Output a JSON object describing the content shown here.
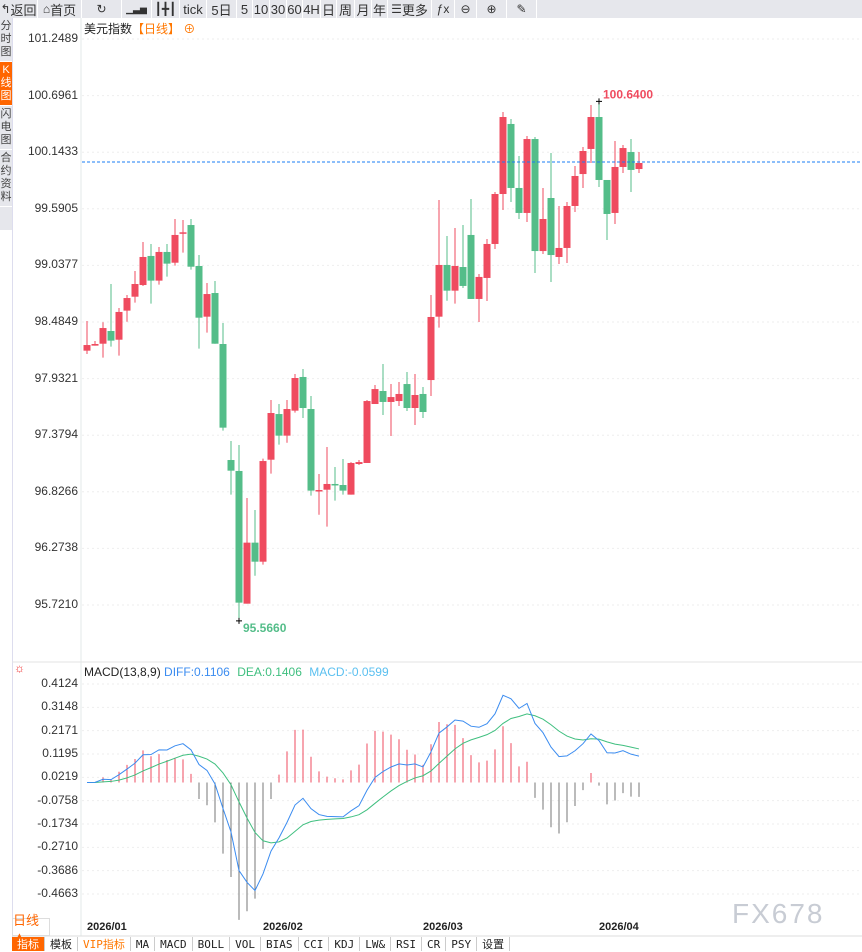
{
  "toolbar": {
    "items": [
      {
        "id": "back",
        "label": "返回",
        "icon": "back-arrow-icon"
      },
      {
        "id": "home",
        "label": "首页",
        "icon": "home-icon"
      },
      {
        "id": "refresh",
        "label": "",
        "icon": "refresh-icon"
      },
      {
        "id": "indicator",
        "label": "",
        "icon": "bar-chart-icon"
      },
      {
        "id": "candle",
        "label": "",
        "icon": "candlestick-icon"
      },
      {
        "id": "tick",
        "label": "tick"
      },
      {
        "id": "5day",
        "label": "5日"
      },
      {
        "id": "5",
        "label": "5"
      },
      {
        "id": "10",
        "label": "10"
      },
      {
        "id": "30",
        "label": "30"
      },
      {
        "id": "60",
        "label": "60"
      },
      {
        "id": "4h",
        "label": "4H"
      },
      {
        "id": "day",
        "label": "日"
      },
      {
        "id": "week",
        "label": "周"
      },
      {
        "id": "month",
        "label": "月"
      },
      {
        "id": "year",
        "label": "年"
      },
      {
        "id": "more",
        "label": "更多",
        "icon": "menu-icon"
      },
      {
        "id": "fx",
        "label": "",
        "icon": "function-icon"
      },
      {
        "id": "zoomout",
        "label": "",
        "icon": "zoom-out-icon"
      },
      {
        "id": "zoomin",
        "label": "",
        "icon": "zoom-in-icon"
      },
      {
        "id": "draw",
        "label": "",
        "icon": "pen-icon"
      }
    ]
  },
  "sidebar": {
    "items": [
      {
        "label": "分时图",
        "active": false
      },
      {
        "label": "K线图",
        "active": true
      },
      {
        "label": "闪电图",
        "active": false
      },
      {
        "label": "合约资料",
        "active": false
      }
    ]
  },
  "chart": {
    "title": "美元指数",
    "period_tag": "【日线】",
    "high_label": "100.6400",
    "low_label": "95.5660",
    "current_price": 100.047
  },
  "colors": {
    "up": "#ef4b5f",
    "down": "#54bd89",
    "accent": "#ff6600",
    "diff": "#3b8cf0",
    "dea": "#3fbf7f",
    "macd": "#5bc0f0",
    "current_line": "#1a7cf5"
  },
  "chart_data": {
    "type": "candlestick",
    "price_axis_ticks": [
      "101.2489",
      "100.6961",
      "100.1433",
      "99.5905",
      "99.0377",
      "98.4849",
      "97.9321",
      "97.3794",
      "96.8266",
      "96.2738",
      "95.7210"
    ],
    "price_range": [
      95.721,
      101.2489
    ],
    "x_labels": [
      {
        "label": "2026/01",
        "index": 1
      },
      {
        "label": "2026/02",
        "index": 23
      },
      {
        "label": "2026/03",
        "index": 43
      },
      {
        "label": "2026/04",
        "index": 65
      }
    ],
    "ohlc": [
      [
        98.205,
        98.495,
        98.172,
        98.26
      ],
      [
        98.254,
        98.299,
        98.254,
        98.27
      ],
      [
        98.273,
        98.482,
        98.137,
        98.426
      ],
      [
        98.397,
        98.856,
        98.244,
        98.303
      ],
      [
        98.312,
        98.622,
        98.156,
        98.583
      ],
      [
        98.596,
        98.749,
        98.488,
        98.719
      ],
      [
        98.732,
        98.983,
        98.674,
        98.856
      ],
      [
        98.846,
        99.266,
        98.837,
        99.12
      ],
      [
        99.13,
        99.247,
        98.664,
        98.889
      ],
      [
        98.889,
        99.217,
        98.85,
        99.169
      ],
      [
        99.169,
        99.247,
        98.928,
        99.055
      ],
      [
        99.064,
        99.491,
        99.035,
        99.335
      ],
      [
        99.348,
        99.481,
        99.162,
        99.361
      ],
      [
        99.432,
        99.491,
        98.996,
        99.025
      ],
      [
        99.032,
        99.139,
        98.225,
        98.527
      ],
      [
        98.537,
        98.866,
        98.381,
        98.758
      ],
      [
        98.768,
        98.885,
        98.273,
        98.273
      ],
      [
        98.27,
        98.475,
        97.424,
        97.453
      ],
      [
        97.137,
        97.323,
        96.799,
        97.033
      ],
      [
        97.03,
        97.284,
        95.566,
        95.744
      ],
      [
        95.734,
        96.766,
        95.734,
        96.33
      ],
      [
        96.33,
        96.649,
        96.007,
        96.144
      ],
      [
        96.144,
        97.15,
        96.115,
        97.127
      ],
      [
        97.14,
        97.723,
        97.004,
        97.596
      ],
      [
        97.586,
        97.684,
        97.287,
        97.375
      ],
      [
        97.375,
        97.723,
        97.306,
        97.635
      ],
      [
        97.619,
        97.977,
        97.6,
        97.938
      ],
      [
        97.948,
        98.026,
        97.547,
        97.645
      ],
      [
        97.635,
        97.762,
        96.789,
        96.838
      ],
      [
        96.838,
        97.0,
        96.603,
        96.844
      ],
      [
        96.847,
        97.264,
        96.486,
        96.903
      ],
      [
        96.903,
        97.069,
        96.74,
        96.896
      ],
      [
        96.893,
        97.147,
        96.799,
        96.838
      ],
      [
        96.799,
        97.117,
        96.799,
        97.108
      ],
      [
        97.098,
        97.137,
        97.088,
        97.117
      ],
      [
        97.108,
        97.723,
        97.108,
        97.713
      ],
      [
        97.684,
        97.87,
        97.684,
        97.83
      ],
      [
        97.811,
        98.075,
        97.577,
        97.704
      ],
      [
        97.704,
        97.879,
        97.372,
        97.752
      ],
      [
        97.713,
        97.899,
        97.665,
        97.782
      ],
      [
        97.879,
        97.997,
        97.616,
        97.645
      ],
      [
        97.645,
        97.977,
        97.479,
        97.772
      ],
      [
        97.782,
        97.85,
        97.547,
        97.606
      ],
      [
        97.918,
        98.749,
        97.762,
        98.534
      ],
      [
        98.537,
        99.676,
        98.43,
        99.042
      ],
      [
        99.042,
        99.325,
        98.693,
        98.791
      ],
      [
        98.791,
        99.403,
        98.664,
        99.032
      ],
      [
        99.022,
        99.432,
        98.817,
        98.837
      ],
      [
        99.335,
        99.686,
        98.71,
        98.71
      ],
      [
        98.71,
        98.954,
        98.485,
        98.925
      ],
      [
        98.915,
        99.296,
        98.69,
        99.247
      ],
      [
        99.247,
        99.755,
        99.198,
        99.735
      ],
      [
        99.735,
        100.536,
        99.579,
        100.487
      ],
      [
        100.419,
        100.468,
        99.657,
        99.794
      ],
      [
        99.794,
        100.106,
        99.491,
        99.55
      ],
      [
        99.55,
        100.302,
        99.462,
        100.272
      ],
      [
        100.272,
        100.292,
        98.964,
        99.178
      ],
      [
        99.178,
        99.794,
        99.149,
        99.491
      ],
      [
        99.696,
        100.136,
        98.876,
        99.139
      ],
      [
        99.12,
        99.618,
        99.051,
        99.208
      ],
      [
        99.208,
        99.657,
        99.061,
        99.618
      ],
      [
        99.618,
        100.009,
        99.559,
        99.911
      ],
      [
        99.93,
        100.194,
        99.794,
        100.155
      ],
      [
        100.175,
        100.604,
        100.038,
        100.487
      ],
      [
        100.487,
        100.64,
        99.804,
        99.872
      ],
      [
        99.872,
        99.872,
        99.286,
        99.54
      ],
      [
        99.55,
        100.253,
        99.442,
        99.999
      ],
      [
        99.999,
        100.214,
        99.94,
        100.184
      ],
      [
        100.145,
        100.272,
        99.755,
        99.97
      ],
      [
        99.979,
        100.145,
        99.94,
        100.038
      ]
    ],
    "macd": {
      "label": "MACD(13,8,9)",
      "diff_label": "DIFF:0.1106",
      "dea_label": "DEA:0.1406",
      "macd_label": "MACD:-0.0599",
      "params": [
        13,
        8,
        9
      ],
      "axis_ticks": [
        "0.4124",
        "0.3148",
        "0.2171",
        "0.1195",
        "0.0219",
        "-0.0758",
        "-0.1734",
        "-0.2710",
        "-0.3686",
        "-0.4663"
      ],
      "range": [
        -0.4663,
        0.4124
      ]
    }
  },
  "bottom": {
    "period_button": "日线 ▲",
    "tabs": [
      {
        "label": "指标",
        "active": true
      },
      {
        "label": "模板"
      },
      {
        "label": "VIP指标",
        "vip": true
      },
      {
        "label": "MA"
      },
      {
        "label": "MACD"
      },
      {
        "label": "BOLL"
      },
      {
        "label": "VOL"
      },
      {
        "label": "BIAS"
      },
      {
        "label": "CCI"
      },
      {
        "label": "KDJ"
      },
      {
        "label": "LW&"
      },
      {
        "label": "RSI"
      },
      {
        "label": "CR"
      },
      {
        "label": "PSY"
      },
      {
        "label": "设置"
      }
    ]
  },
  "watermark": "FX678"
}
